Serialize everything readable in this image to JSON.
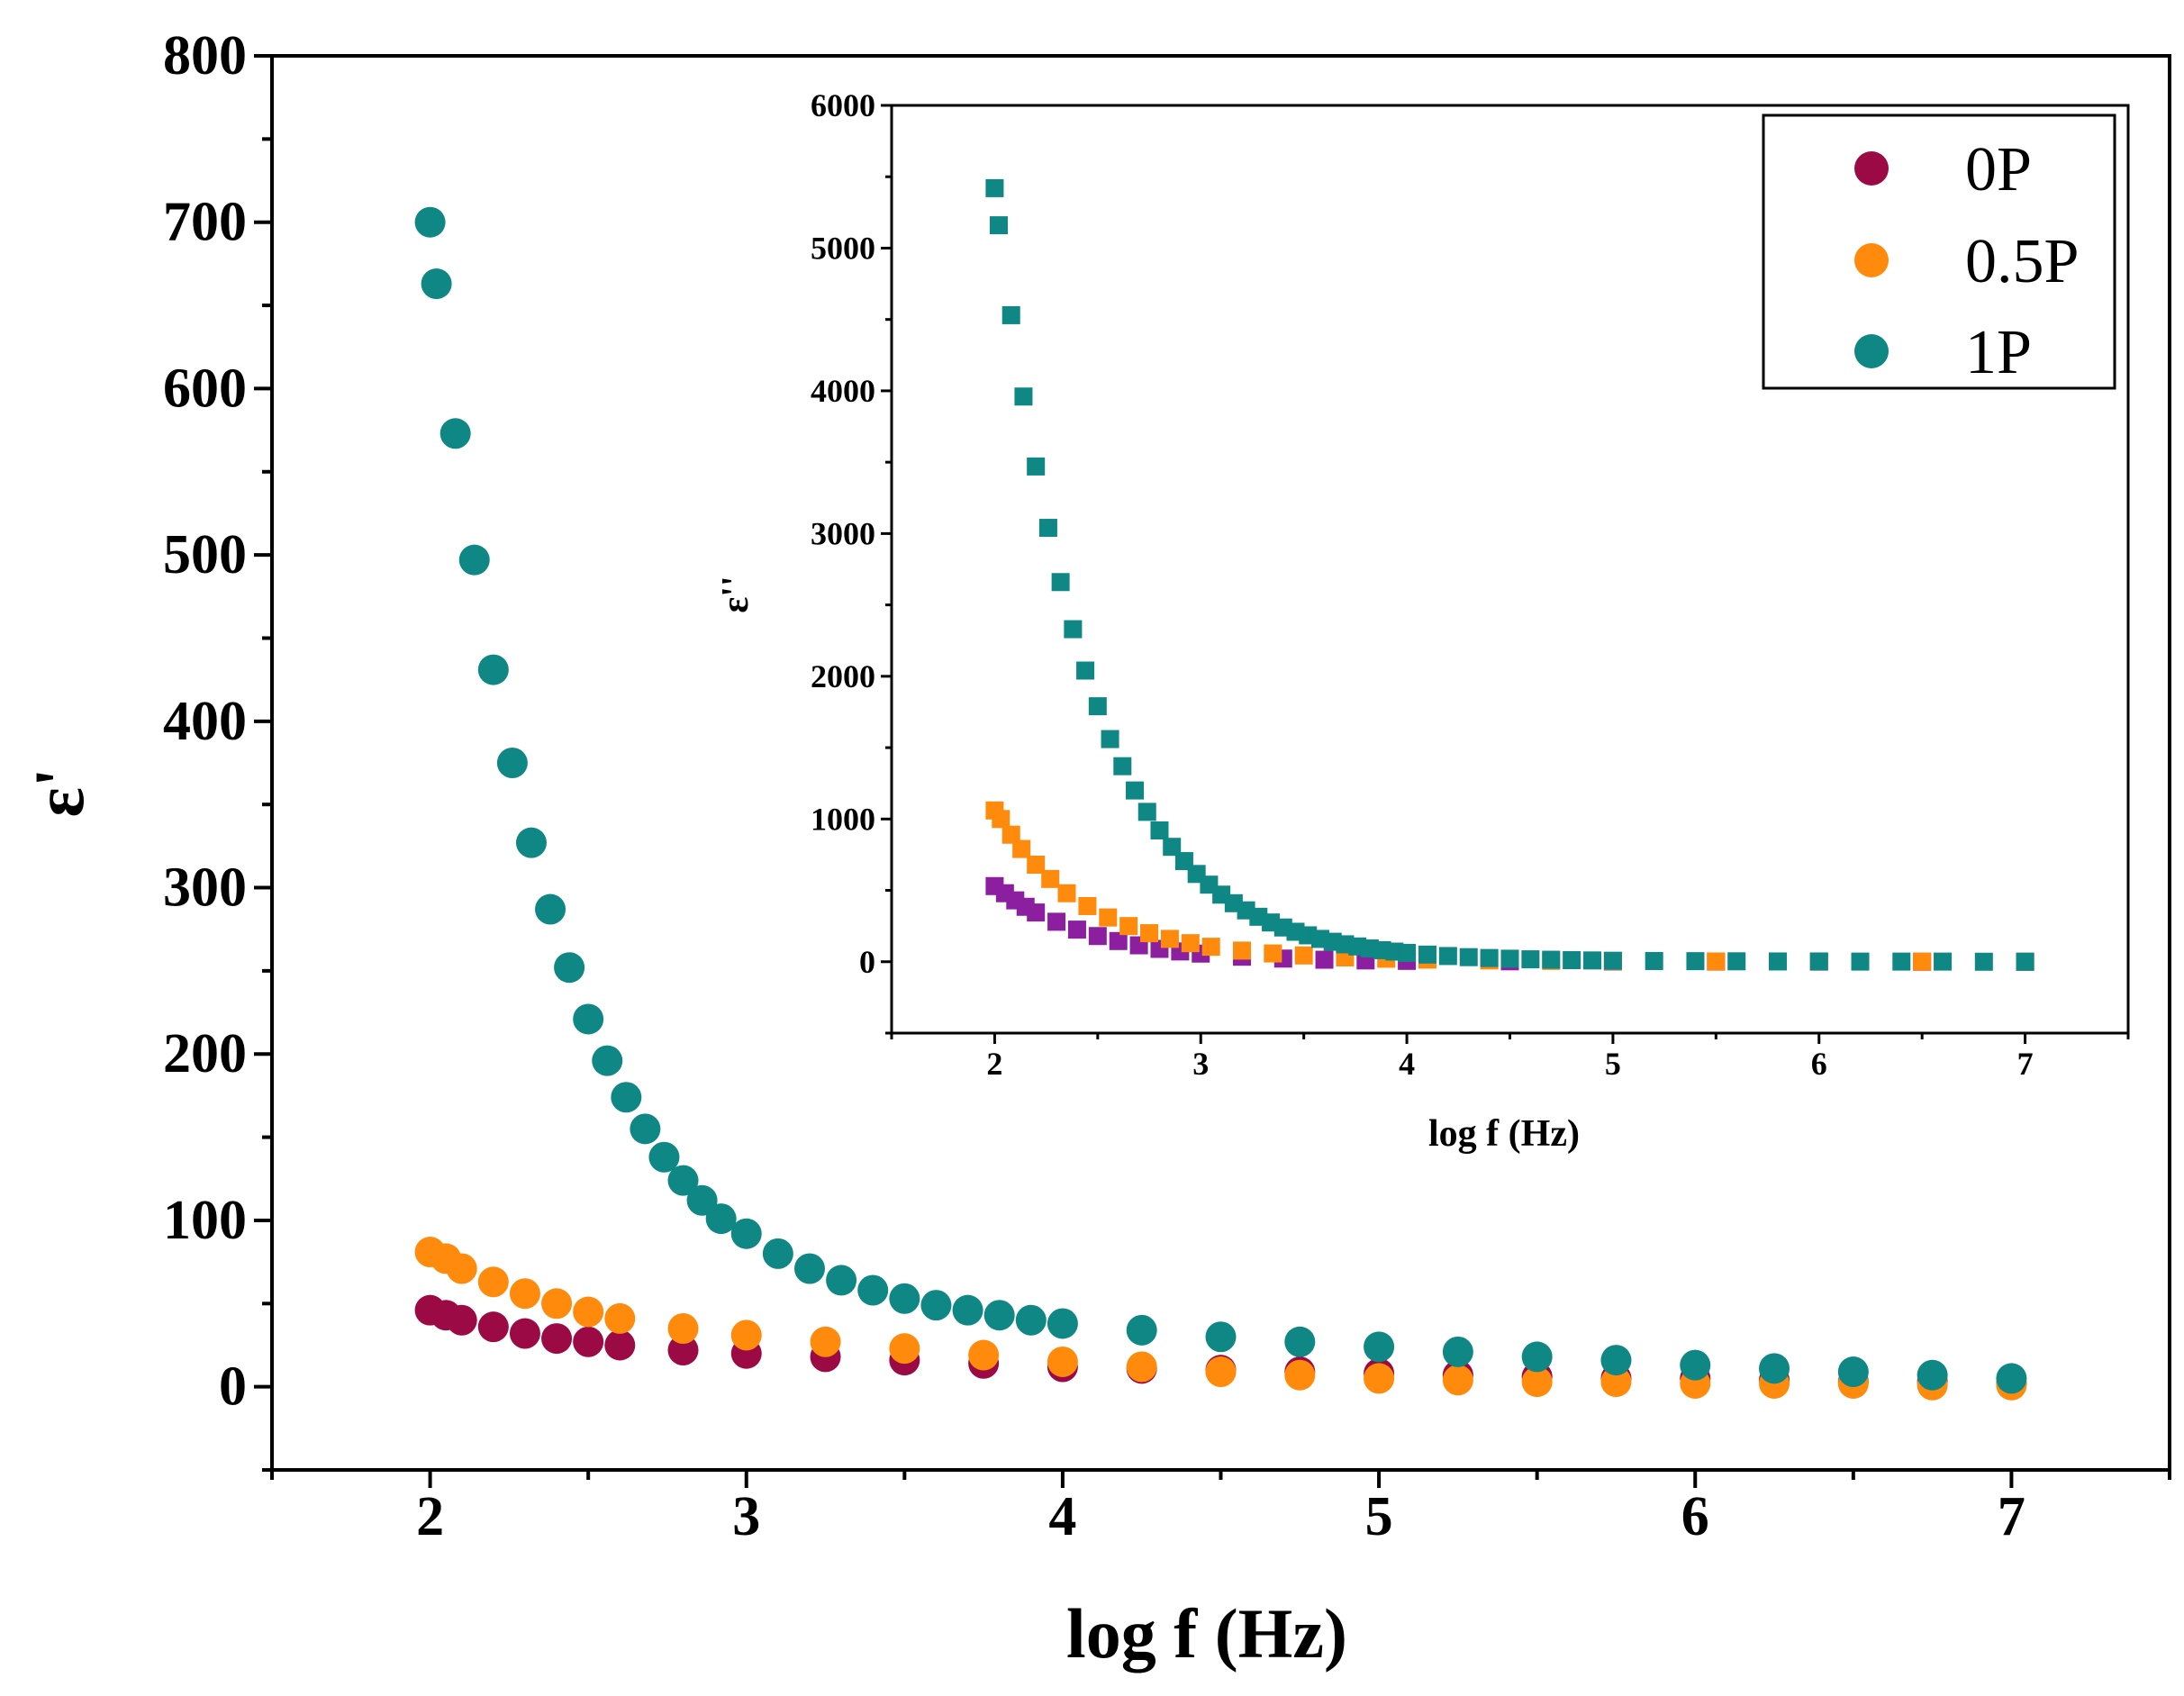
{
  "chart_data": [
    {
      "id": "main",
      "type": "scatter",
      "title": "",
      "xlabel": "log f (Hz)",
      "ylabel": "ε'",
      "xlim": [
        1.5,
        7.5
      ],
      "ylim": [
        -50,
        800
      ],
      "xticks": [
        2,
        3,
        4,
        5,
        6,
        7
      ],
      "yticks": [
        0,
        100,
        200,
        300,
        400,
        500,
        600,
        700,
        800
      ],
      "grid": false,
      "legend_position": "top-right",
      "series": [
        {
          "name": "0P",
          "color": "#9c0a45",
          "marker": "circle",
          "x": [
            2.0,
            2.05,
            2.1,
            2.2,
            2.3,
            2.4,
            2.5,
            2.6,
            2.8,
            3.0,
            3.25,
            3.5,
            3.75,
            4.0,
            4.25,
            4.5,
            4.75,
            5.0,
            5.25,
            5.5,
            5.75,
            6.0,
            6.25,
            6.5,
            6.75,
            7.0
          ],
          "y": [
            46,
            43,
            40,
            36,
            32,
            29,
            27,
            25,
            22,
            20,
            18,
            16,
            14,
            12,
            11,
            10,
            9,
            8,
            7,
            6,
            5,
            5,
            4,
            3,
            3,
            2
          ]
        },
        {
          "name": "0.5P",
          "color": "#ff8a0c",
          "marker": "circle",
          "x": [
            2.0,
            2.05,
            2.1,
            2.2,
            2.3,
            2.4,
            2.5,
            2.6,
            2.8,
            3.0,
            3.25,
            3.5,
            3.75,
            4.0,
            4.25,
            4.5,
            4.75,
            5.0,
            5.25,
            5.5,
            5.75,
            6.0,
            6.25,
            6.5,
            6.75,
            7.0
          ],
          "y": [
            81,
            77,
            71,
            63,
            56,
            50,
            45,
            41,
            35,
            31,
            27,
            23,
            19,
            15,
            12,
            9,
            7,
            5,
            4,
            3,
            3,
            2,
            2,
            2,
            1,
            1
          ]
        },
        {
          "name": "1P",
          "color": "#0f8784",
          "marker": "circle",
          "x": [
            2.0,
            2.02,
            2.08,
            2.14,
            2.2,
            2.26,
            2.32,
            2.38,
            2.44,
            2.5,
            2.56,
            2.62,
            2.68,
            2.74,
            2.8,
            2.86,
            2.92,
            3.0,
            3.1,
            3.2,
            3.3,
            3.4,
            3.5,
            3.6,
            3.7,
            3.8,
            3.9,
            4.0,
            4.25,
            4.5,
            4.75,
            5.0,
            5.25,
            5.5,
            5.75,
            6.0,
            6.25,
            6.5,
            6.75,
            7.0
          ],
          "y": [
            700,
            663,
            573,
            497,
            431,
            375,
            327,
            287,
            252,
            221,
            196,
            174,
            155,
            138,
            124,
            112,
            101,
            92,
            80,
            71,
            64,
            58,
            53,
            49,
            46,
            43,
            40,
            38,
            34,
            30,
            27,
            24,
            21,
            18,
            16,
            13,
            11,
            9,
            7,
            5
          ]
        }
      ]
    },
    {
      "id": "inset",
      "type": "scatter",
      "title": "",
      "xlabel": "log f (Hz)",
      "ylabel": "ε''",
      "xlim": [
        1.5,
        7.5
      ],
      "ylim": [
        -500,
        6000
      ],
      "xticks": [
        2,
        3,
        4,
        5,
        6,
        7
      ],
      "yticks": [
        0,
        1000,
        2000,
        3000,
        4000,
        5000,
        6000
      ],
      "grid": false,
      "series": [
        {
          "name": "0P",
          "color": "#8b1fa0",
          "marker": "square",
          "x": [
            2.0,
            2.05,
            2.1,
            2.15,
            2.2,
            2.3,
            2.4,
            2.5,
            2.6,
            2.7,
            2.8,
            2.9,
            3.0,
            3.2,
            3.4,
            3.6,
            3.8,
            4.0,
            4.5,
            5.0,
            5.5,
            6.0,
            6.5,
            7.0
          ],
          "y": [
            530,
            480,
            430,
            385,
            345,
            280,
            225,
            180,
            145,
            115,
            90,
            72,
            57,
            35,
            22,
            14,
            9,
            6,
            3,
            2,
            1,
            1,
            0,
            0
          ]
        },
        {
          "name": "0.5P",
          "color": "#ff8a0c",
          "marker": "square",
          "x": [
            2.0,
            2.03,
            2.08,
            2.13,
            2.2,
            2.27,
            2.35,
            2.45,
            2.55,
            2.65,
            2.75,
            2.85,
            2.95,
            3.05,
            3.2,
            3.35,
            3.5,
            3.7,
            3.9,
            4.1,
            4.4,
            4.7,
            5.0,
            5.5,
            6.0,
            6.5,
            7.0
          ],
          "y": [
            1060,
            1000,
            890,
            790,
            680,
            580,
            480,
            390,
            310,
            250,
            200,
            160,
            130,
            105,
            78,
            58,
            44,
            30,
            21,
            15,
            9,
            6,
            4,
            2,
            1,
            1,
            0
          ]
        },
        {
          "name": "1P",
          "color": "#0f8784",
          "marker": "square",
          "x": [
            2.0,
            2.02,
            2.08,
            2.14,
            2.2,
            2.26,
            2.32,
            2.38,
            2.44,
            2.5,
            2.56,
            2.62,
            2.68,
            2.74,
            2.8,
            2.86,
            2.92,
            2.98,
            3.04,
            3.1,
            3.16,
            3.22,
            3.28,
            3.34,
            3.4,
            3.46,
            3.52,
            3.58,
            3.64,
            3.7,
            3.76,
            3.82,
            3.88,
            3.94,
            4.0,
            4.1,
            4.2,
            4.3,
            4.4,
            4.5,
            4.6,
            4.7,
            4.8,
            4.9,
            5.0,
            5.2,
            5.4,
            5.6,
            5.8,
            6.0,
            6.2,
            6.4,
            6.6,
            6.8,
            7.0
          ],
          "y": [
            5420,
            5160,
            4530,
            3960,
            3470,
            3040,
            2660,
            2330,
            2040,
            1790,
            1560,
            1370,
            1200,
            1050,
            920,
            805,
            705,
            615,
            540,
            470,
            410,
            360,
            315,
            275,
            240,
            210,
            185,
            160,
            140,
            122,
            107,
            93,
            81,
            71,
            62,
            50,
            40,
            32,
            26,
            21,
            17,
            14,
            11,
            9,
            7,
            5,
            4,
            3,
            2,
            2,
            1,
            1,
            1,
            0,
            0
          ]
        }
      ]
    }
  ],
  "legend": {
    "entries": [
      {
        "label": "0P",
        "color": "#9c0a45"
      },
      {
        "label": "0.5P",
        "color": "#ff8a0c"
      },
      {
        "label": "1P",
        "color": "#0f8784"
      }
    ]
  }
}
